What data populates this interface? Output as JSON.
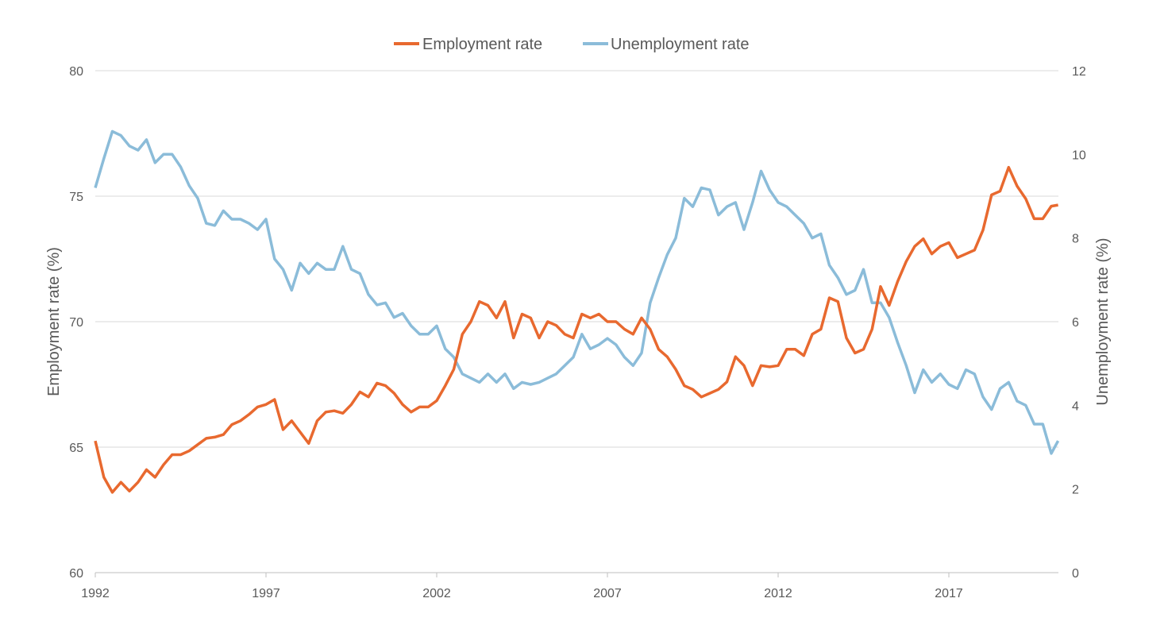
{
  "chart_data": {
    "type": "line",
    "legend_position": "top",
    "grid": true,
    "xlabel": "",
    "ylabel": "Employment rate (%)",
    "y2label": "Unemployment rate (%)",
    "xlim": [
      1992,
      2020.2
    ],
    "ylim": [
      60,
      80
    ],
    "y2lim": [
      0,
      12
    ],
    "xticks": [
      "1992",
      "1997",
      "2002",
      "2007",
      "2012",
      "2017"
    ],
    "yticks": [
      "60",
      "65",
      "70",
      "75",
      "80"
    ],
    "y2ticks": [
      "0",
      "2",
      "4",
      "6",
      "8",
      "10",
      "12"
    ],
    "x": [
      1992.0,
      1992.25,
      1992.5,
      1992.75,
      1993.0,
      1993.25,
      1993.5,
      1993.75,
      1994.0,
      1994.25,
      1994.5,
      1994.75,
      1995.0,
      1995.25,
      1995.5,
      1995.75,
      1996.0,
      1996.25,
      1996.5,
      1996.75,
      1997.0,
      1997.25,
      1997.5,
      1997.75,
      1998.0,
      1998.25,
      1998.5,
      1998.75,
      1999.0,
      1999.25,
      1999.5,
      1999.75,
      2000.0,
      2000.25,
      2000.5,
      2000.75,
      2001.0,
      2001.25,
      2001.5,
      2001.75,
      2002.0,
      2002.25,
      2002.5,
      2002.75,
      2003.0,
      2003.25,
      2003.5,
      2003.75,
      2004.0,
      2004.25,
      2004.5,
      2004.75,
      2005.0,
      2005.25,
      2005.5,
      2005.75,
      2006.0,
      2006.25,
      2006.5,
      2006.75,
      2007.0,
      2007.25,
      2007.5,
      2007.75,
      2008.0,
      2008.25,
      2008.5,
      2008.75,
      2009.0,
      2009.25,
      2009.5,
      2009.75,
      2010.0,
      2010.25,
      2010.5,
      2010.75,
      2011.0,
      2011.25,
      2011.5,
      2011.75,
      2012.0,
      2012.25,
      2012.5,
      2012.75,
      2013.0,
      2013.25,
      2013.5,
      2013.75,
      2014.0,
      2014.25,
      2014.5,
      2014.75,
      2015.0,
      2015.25,
      2015.5,
      2015.75,
      2016.0,
      2016.25,
      2016.5,
      2016.75,
      2017.0,
      2017.25,
      2017.5,
      2017.75,
      2018.0,
      2018.25,
      2018.5,
      2018.75,
      2019.0,
      2019.25,
      2019.5,
      2019.75,
      2020.0,
      2020.2
    ],
    "series": [
      {
        "name": "Employment rate",
        "axis": "left",
        "color": "#E8692F",
        "values": [
          65.25,
          63.8,
          63.2,
          63.6,
          63.25,
          63.6,
          64.1,
          63.8,
          64.3,
          64.7,
          64.7,
          64.85,
          65.1,
          65.35,
          65.4,
          65.5,
          65.9,
          66.05,
          66.3,
          66.6,
          66.7,
          66.9,
          65.7,
          66.05,
          65.6,
          65.15,
          66.05,
          66.4,
          66.45,
          66.35,
          66.7,
          67.2,
          67.0,
          67.55,
          67.45,
          67.15,
          66.7,
          66.4,
          66.6,
          66.6,
          66.85,
          67.45,
          68.1,
          69.5,
          70.0,
          70.8,
          70.65,
          70.15,
          70.8,
          69.35,
          70.3,
          70.15,
          69.35,
          70.0,
          69.85,
          69.5,
          69.35,
          70.3,
          70.15,
          70.3,
          70.0,
          70.0,
          69.7,
          69.5,
          70.15,
          69.7,
          68.9,
          68.6,
          68.1,
          67.45,
          67.3,
          67.0,
          67.15,
          67.3,
          67.6,
          68.6,
          68.25,
          67.45,
          68.25,
          68.2,
          68.25,
          68.9,
          68.9,
          68.65,
          69.5,
          69.7,
          70.95,
          70.8,
          69.35,
          68.75,
          68.9,
          69.7,
          71.4,
          70.65,
          71.6,
          72.4,
          73.0,
          73.3,
          72.7,
          73.0,
          73.15,
          72.55,
          72.7,
          72.85,
          73.65,
          75.05,
          75.2,
          76.15,
          75.4,
          74.9,
          74.1,
          74.1,
          74.6,
          74.65
        ]
      },
      {
        "name": "Unemployment rate",
        "axis": "right",
        "color": "#8BBCD9",
        "values": [
          9.2,
          9.9,
          10.55,
          10.45,
          10.2,
          10.1,
          10.35,
          9.8,
          10.0,
          10.0,
          9.7,
          9.25,
          8.95,
          8.35,
          8.3,
          8.65,
          8.45,
          8.45,
          8.35,
          8.2,
          8.45,
          7.5,
          7.25,
          6.75,
          7.4,
          7.15,
          7.4,
          7.25,
          7.25,
          7.8,
          7.25,
          7.15,
          6.65,
          6.4,
          6.45,
          6.1,
          6.2,
          5.9,
          5.7,
          5.7,
          5.9,
          5.35,
          5.15,
          4.75,
          4.65,
          4.55,
          4.75,
          4.55,
          4.75,
          4.4,
          4.55,
          4.5,
          4.55,
          4.65,
          4.75,
          4.95,
          5.15,
          5.7,
          5.35,
          5.45,
          5.6,
          5.45,
          5.15,
          4.95,
          5.25,
          6.45,
          7.05,
          7.6,
          8.0,
          8.95,
          8.75,
          9.2,
          9.15,
          8.55,
          8.75,
          8.85,
          8.2,
          8.85,
          9.6,
          9.15,
          8.85,
          8.75,
          8.55,
          8.35,
          8.0,
          8.1,
          7.35,
          7.05,
          6.65,
          6.75,
          7.25,
          6.45,
          6.45,
          6.1,
          5.5,
          4.95,
          4.3,
          4.85,
          4.55,
          4.75,
          4.5,
          4.4,
          4.85,
          4.75,
          4.2,
          3.9,
          4.4,
          4.55,
          4.1,
          4.0,
          3.55,
          3.55,
          2.85,
          3.15
        ]
      }
    ]
  }
}
